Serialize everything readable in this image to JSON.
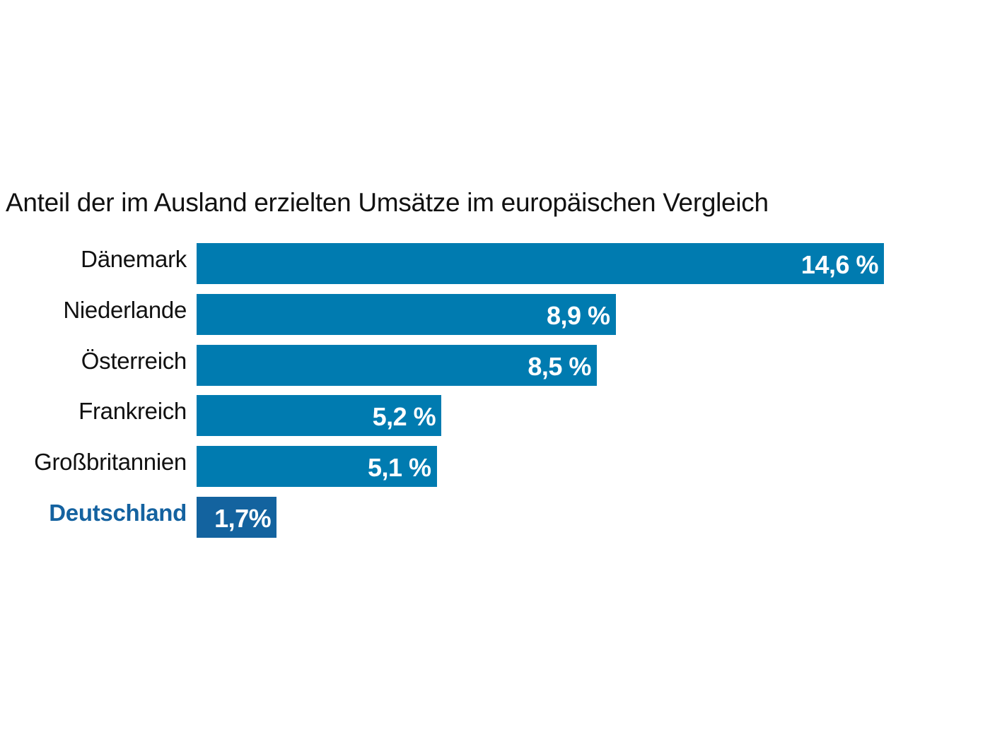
{
  "chart_data": {
    "type": "bar",
    "orientation": "horizontal",
    "title": "Anteil der im Ausland erzielten Umsätze im europäischen Vergleich",
    "xlabel": "",
    "ylabel": "",
    "categories": [
      "Dänemark",
      "Niederlande",
      "Österreich",
      "Frankreich",
      "Großbritannien",
      "Deutschland"
    ],
    "values": [
      14.6,
      8.9,
      8.5,
      5.2,
      5.1,
      1.7
    ],
    "value_labels": [
      "14,6 %",
      "8,9 %",
      "8,5 %",
      "5,2 %",
      "5,1 %",
      "1,7%"
    ],
    "unit": "%",
    "highlight": "Deutschland",
    "xlim": [
      0,
      14.6
    ],
    "grid": false,
    "legend": "none",
    "colors": {
      "bar": "#007bb0",
      "highlight_bar": "#13639f",
      "highlight_label": "#1462a0"
    }
  }
}
